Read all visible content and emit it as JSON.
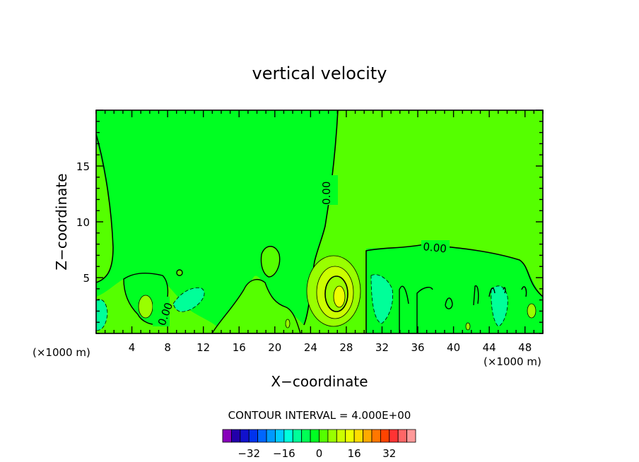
{
  "chart_data": {
    "type": "contour",
    "title": "vertical velocity",
    "xlabel": "X−coordinate",
    "ylabel": "Z−coordinate",
    "x_unit_left": "(×1000 m)",
    "x_unit_right": "(×1000 m)",
    "xlim": [
      0,
      50
    ],
    "ylim": [
      0,
      20
    ],
    "x_ticks": [
      4,
      8,
      12,
      16,
      20,
      24,
      28,
      32,
      36,
      40,
      44,
      48
    ],
    "x_tick_labels": [
      "4",
      "8",
      "12",
      "16",
      "20",
      "24",
      "28",
      "32",
      "36",
      "40",
      "44",
      "48"
    ],
    "y_ticks": [
      5,
      10,
      15
    ],
    "y_tick_labels": [
      "5",
      "10",
      "15"
    ],
    "contour_labels": [
      "0.00",
      "0.00",
      "0.00"
    ],
    "contour_interval_text": "CONTOUR INTERVAL = 4.000E+00",
    "contour_interval": 4,
    "colorbar": {
      "colors": [
        "#8800bb",
        "#2200aa",
        "#1111cc",
        "#0033ee",
        "#0066ff",
        "#0099ff",
        "#00ccff",
        "#00ffdd",
        "#00ff99",
        "#00ff55",
        "#00ff22",
        "#55ff00",
        "#99ff00",
        "#ccff00",
        "#eeff00",
        "#ffdd00",
        "#ffaa00",
        "#ff7700",
        "#ff4400",
        "#ff3333",
        "#ff6666",
        "#ff9999"
      ],
      "tick_values": [
        -32,
        -16,
        0,
        16,
        32
      ],
      "tick_labels": [
        "−32",
        "−16",
        "0",
        "16",
        "32"
      ]
    },
    "field_colors": {
      "background": "#00ff22",
      "weak_positive": "#55ff00",
      "positive": "#99ff00",
      "strong_positive": "#ccff00",
      "peak": "#eeff00",
      "weak_negative": "#00ff55",
      "negative": "#00ff99"
    }
  }
}
